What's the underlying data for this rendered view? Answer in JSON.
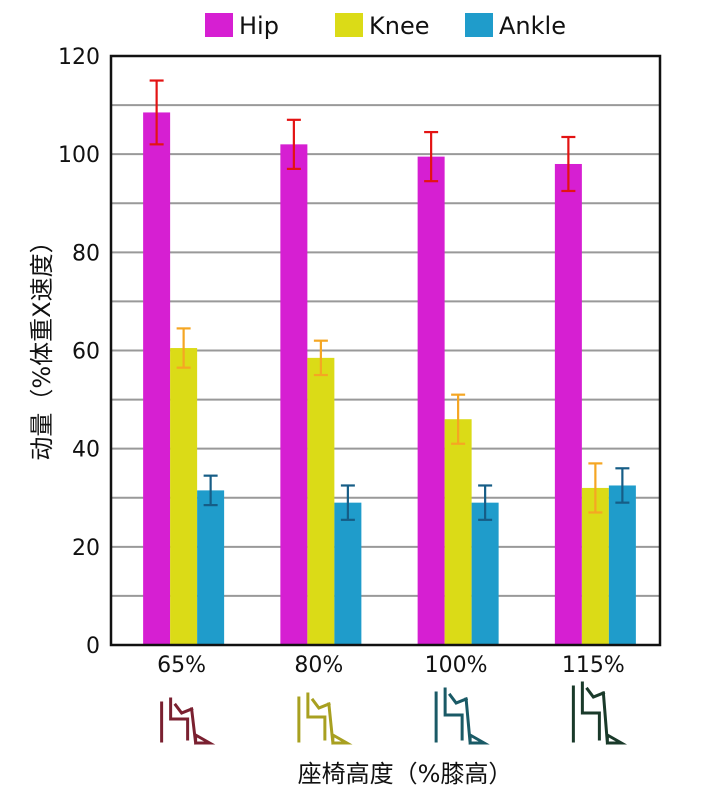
{
  "chart_data": {
    "type": "bar",
    "categories": [
      "65%",
      "80%",
      "100%",
      "115%"
    ],
    "series": [
      {
        "name": "Hip",
        "values": [
          108.5,
          102,
          99.5,
          98
        ],
        "errors": [
          6.5,
          5,
          5,
          5.5
        ],
        "color": "#d61fd2",
        "error_color": "#e31313"
      },
      {
        "name": "Knee",
        "values": [
          60.5,
          58.5,
          46,
          32
        ],
        "errors": [
          4,
          3.5,
          5,
          5
        ],
        "color": "#dbdb17",
        "error_color": "#f5a623"
      },
      {
        "name": "Ankle",
        "values": [
          31.5,
          29,
          29,
          32.5
        ],
        "errors": [
          3,
          3.5,
          3.5,
          3.5
        ],
        "color": "#1f9ccb",
        "error_color": "#165d86"
      }
    ],
    "ylim": [
      0,
      120
    ],
    "yticks": [
      0,
      20,
      40,
      60,
      80,
      100,
      120
    ],
    "ylabel": "动量（%体重X速度）",
    "xlabel": "座椅高度（%膝高）",
    "grid": true,
    "legend_position": "top",
    "icon_colors": [
      "#7a2030",
      "#a8a020",
      "#1a5a66",
      "#1a3a2a"
    ]
  }
}
